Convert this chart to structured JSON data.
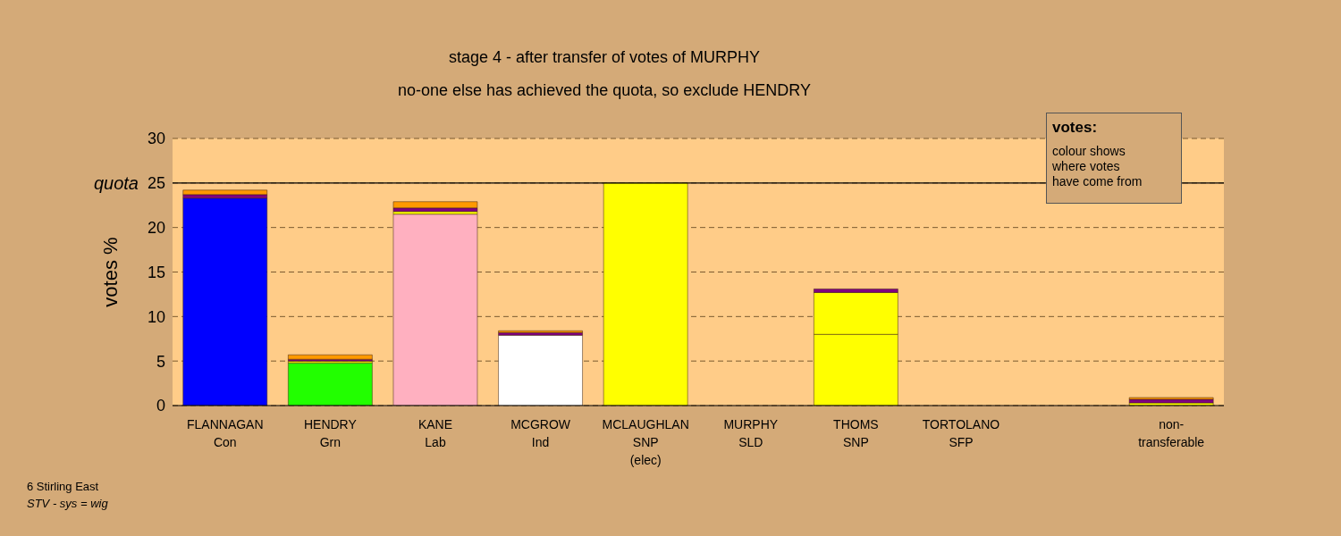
{
  "chart_data": {
    "type": "bar",
    "stacked": true,
    "title": "stage 4 - after transfer of votes of MURPHY",
    "subtitle": "no-one else has achieved the quota, so exclude HENDRY",
    "ylabel": "votes %",
    "categories": [
      "FLANNAGAN\nCon",
      "HENDRY\nGrn",
      "KANE\nLab",
      "MCGROW\nInd",
      "MCLAUGHLAN\nSNP\n(elec)",
      "MURPHY\nSLD",
      "THOMS\nSNP",
      "TORTOLANO\nSFP",
      null,
      "non-\ntransferable"
    ],
    "series": [
      {
        "color": "#0000ff",
        "colors": [
          "#0000ff",
          "#22ff00",
          "#ffb0c0",
          "#ffffff",
          "#ffff00",
          "#800080",
          "#ffff00",
          "#ff9900",
          "#ffffff",
          "#ffffff"
        ],
        "values": [
          23.3,
          4.8,
          21.5,
          7.9,
          25,
          0,
          8.0,
          0,
          null,
          0
        ]
      },
      {
        "color": "#ffff00",
        "values": [
          0,
          0.2,
          0.3,
          0,
          0,
          0,
          4.7,
          0,
          null,
          0.3
        ]
      },
      {
        "color": "#800080",
        "values": [
          0.4,
          0.2,
          0.4,
          0.3,
          0,
          0,
          0.4,
          0,
          null,
          0.4
        ]
      },
      {
        "color": "#ff9900",
        "values": [
          0.5,
          0.5,
          0.7,
          0.2,
          0,
          0,
          0,
          0,
          null,
          0.2
        ]
      }
    ],
    "ylim": [
      0,
      30
    ],
    "yticks": [
      0,
      5,
      10,
      15,
      20,
      25,
      30
    ],
    "grid": "y",
    "ref_lines": [
      {
        "axis": "y",
        "value": 25,
        "label": "quota",
        "color": "#000000",
        "line_style": "solid"
      }
    ],
    "annotations": [
      "votes:",
      "colour shows\nwhere votes\nhave come from",
      "6 Stirling East",
      "STV - sys = wig"
    ]
  }
}
